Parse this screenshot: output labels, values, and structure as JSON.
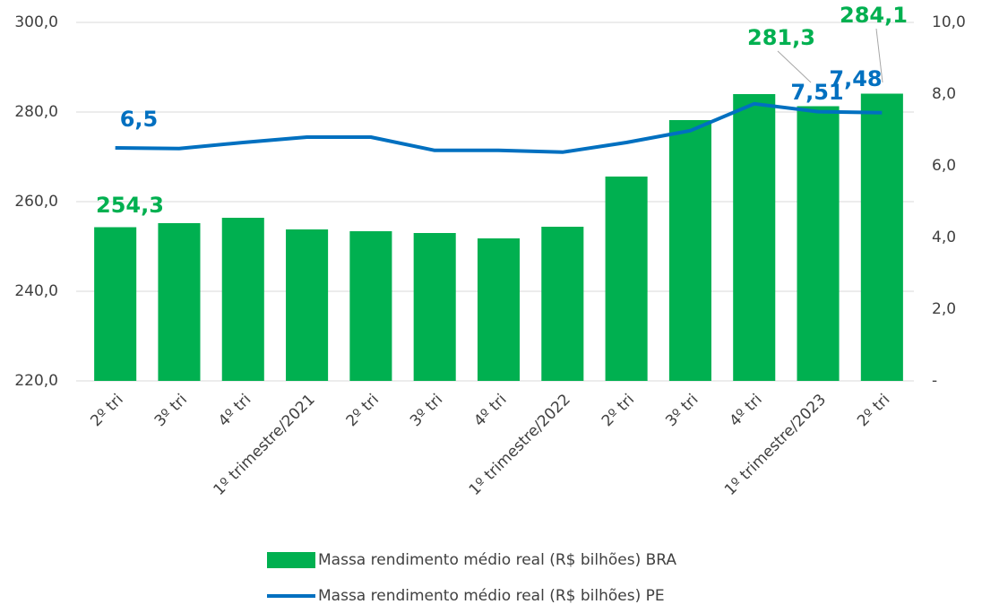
{
  "chart_data": {
    "type": "bar-line",
    "categories": [
      "2º tri",
      "3º tri",
      "4º tri",
      "1º trimestre/2021",
      "2º tri",
      "3º tri",
      "4º tri",
      "1º trimestre/2022",
      "2º tri",
      "3º tri",
      "4º tri",
      "1º trimestre/2023",
      "2º tri"
    ],
    "series": [
      {
        "name": "Massa rendimento médio real (R$ bilhões) BRA",
        "type": "bar",
        "color": "#00b050",
        "values": [
          254.3,
          255.2,
          256.4,
          253.8,
          253.4,
          253.0,
          251.8,
          254.4,
          265.6,
          278.2,
          284.0,
          281.3,
          284.1
        ],
        "value_labels": [
          "254,3",
          null,
          null,
          null,
          null,
          null,
          null,
          null,
          null,
          null,
          null,
          "281,3",
          "284,1"
        ]
      },
      {
        "name": "Massa rendimento médio real (R$ bilhões) PE",
        "type": "line",
        "axis": "y2",
        "color": "#0070c0",
        "values": [
          6.5,
          6.48,
          6.65,
          6.8,
          6.8,
          6.43,
          6.43,
          6.38,
          6.65,
          6.98,
          7.73,
          7.51,
          7.48
        ],
        "value_labels": [
          "6,5",
          null,
          null,
          null,
          null,
          null,
          null,
          null,
          null,
          null,
          null,
          "7,51",
          "7,48"
        ]
      }
    ],
    "ylim": [
      220,
      300
    ],
    "yticks": [
      {
        "value": 220,
        "label": "220,0"
      },
      {
        "value": 240,
        "label": "240,0"
      },
      {
        "value": 260,
        "label": "260,0"
      },
      {
        "value": 280,
        "label": "280,0"
      },
      {
        "value": 300,
        "label": "300,0"
      }
    ],
    "y2lim": [
      0,
      10
    ],
    "y2ticks": [
      {
        "value": 0,
        "label": "-"
      },
      {
        "value": 2,
        "label": "2,0"
      },
      {
        "value": 4,
        "label": "4,0"
      },
      {
        "value": 6,
        "label": "6,0"
      },
      {
        "value": 8,
        "label": "8,0"
      },
      {
        "value": 10,
        "label": "10,0"
      }
    ],
    "grid": true,
    "legend": "bottom"
  }
}
